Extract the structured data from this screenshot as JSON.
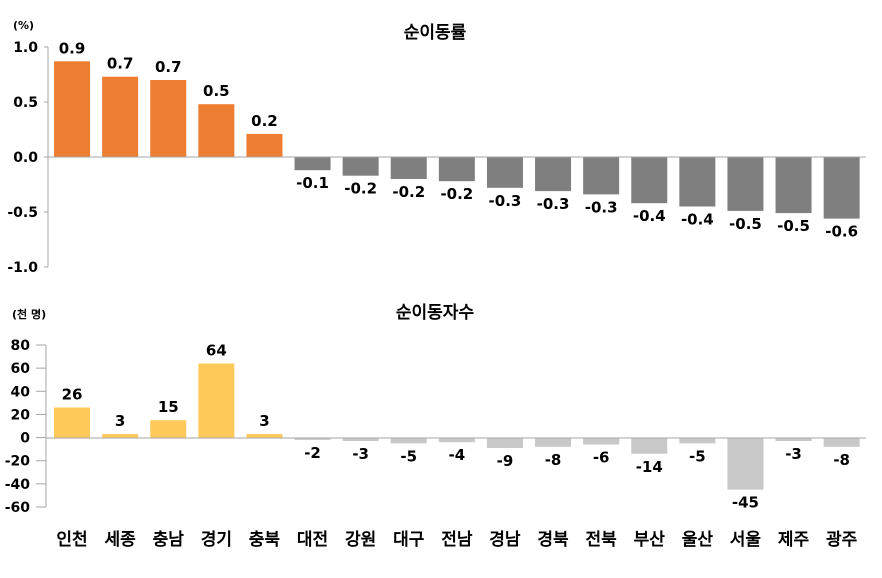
{
  "chart_data": [
    {
      "type": "bar",
      "title": "순이동률",
      "unit_label": "(%)",
      "categories": [
        "인천",
        "세종",
        "충남",
        "경기",
        "충북",
        "대전",
        "강원",
        "대구",
        "전남",
        "경남",
        "경북",
        "전북",
        "부산",
        "울산",
        "서울",
        "제주",
        "광주"
      ],
      "values": [
        0.87,
        0.73,
        0.7,
        0.48,
        0.21,
        -0.12,
        -0.17,
        -0.2,
        -0.22,
        -0.28,
        -0.31,
        -0.34,
        -0.42,
        -0.45,
        -0.49,
        -0.51,
        -0.56
      ],
      "value_labels": [
        "0.9",
        "0.7",
        "0.7",
        "0.5",
        "0.2",
        "-0.1",
        "-0.2",
        "-0.2",
        "-0.2",
        "-0.3",
        "-0.3",
        "-0.3",
        "-0.4",
        "-0.4",
        "-0.5",
        "-0.5",
        "-0.6"
      ],
      "ylim": [
        -1.0,
        1.0
      ],
      "yticks": [
        1.0,
        0.5,
        0.0,
        -0.5,
        -1.0
      ],
      "ytick_labels": [
        "1.0",
        "0.5",
        "0.0",
        "-0.5",
        "-1.0"
      ],
      "colors": {
        "positive": "#ED7D31",
        "negative": "#7F7F7F"
      }
    },
    {
      "type": "bar",
      "title": "순이동자수",
      "unit_label": "(천 명)",
      "categories": [
        "인천",
        "세종",
        "충남",
        "경기",
        "충북",
        "대전",
        "강원",
        "대구",
        "전남",
        "경남",
        "경북",
        "전북",
        "부산",
        "울산",
        "서울",
        "제주",
        "광주"
      ],
      "values": [
        26,
        3,
        15,
        64,
        3,
        -2,
        -3,
        -5,
        -4,
        -9,
        -8,
        -6,
        -14,
        -5,
        -45,
        -3,
        -8
      ],
      "value_labels": [
        "26",
        "3",
        "15",
        "64",
        "3",
        "-2",
        "-3",
        "-5",
        "-4",
        "-9",
        "-8",
        "-6",
        "-14",
        "-5",
        "-45",
        "-3",
        "-8"
      ],
      "ylim": [
        -60,
        80
      ],
      "yticks": [
        80,
        60,
        40,
        20,
        0,
        -20,
        -40,
        -60
      ],
      "ytick_labels": [
        "80",
        "60",
        "40",
        "20",
        "0",
        "-20",
        "-40",
        "-60"
      ],
      "colors": {
        "positive": "#FFC85A",
        "negative": "#C8C8C8"
      }
    }
  ]
}
